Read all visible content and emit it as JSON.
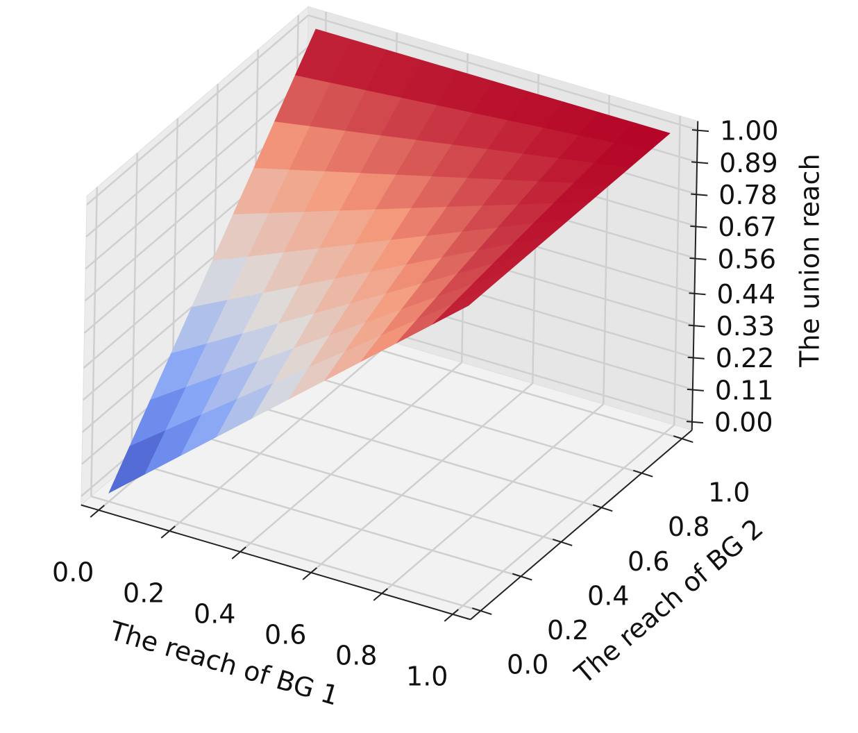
{
  "chart_data": {
    "type": "surface",
    "xlabel": "The reach of BG 1",
    "ylabel": "The reach of BG 2",
    "zlabel": "The union reach",
    "x": [
      0,
      0.1,
      0.2,
      0.3,
      0.4,
      0.5,
      0.6,
      0.7,
      0.8,
      0.9,
      1
    ],
    "y": [
      0,
      0.1,
      0.2,
      0.3,
      0.4,
      0.5,
      0.6,
      0.7,
      0.8,
      0.9,
      1
    ],
    "z": [
      [
        0,
        0.1,
        0.2,
        0.3,
        0.4,
        0.5,
        0.6,
        0.7,
        0.8,
        0.9,
        1
      ],
      [
        0.1,
        0.19,
        0.28,
        0.37,
        0.46,
        0.55,
        0.64,
        0.73,
        0.82,
        0.91,
        1
      ],
      [
        0.2,
        0.28,
        0.36,
        0.44,
        0.52,
        0.6,
        0.68,
        0.76,
        0.84,
        0.92,
        1
      ],
      [
        0.3,
        0.37,
        0.44,
        0.51,
        0.58,
        0.65,
        0.72,
        0.79,
        0.86,
        0.93,
        1
      ],
      [
        0.4,
        0.46,
        0.52,
        0.58,
        0.64,
        0.7,
        0.76,
        0.82,
        0.88,
        0.94,
        1
      ],
      [
        0.5,
        0.55,
        0.6,
        0.65,
        0.7,
        0.75,
        0.8,
        0.85,
        0.9,
        0.95,
        1
      ],
      [
        0.6,
        0.64,
        0.68,
        0.72,
        0.76,
        0.8,
        0.84,
        0.88,
        0.92,
        0.96,
        1
      ],
      [
        0.7,
        0.73,
        0.76,
        0.79,
        0.82,
        0.85,
        0.88,
        0.91,
        0.94,
        0.97,
        1
      ],
      [
        0.8,
        0.82,
        0.84,
        0.86,
        0.88,
        0.9,
        0.92,
        0.94,
        0.96,
        0.98,
        1
      ],
      [
        0.9,
        0.91,
        0.92,
        0.93,
        0.94,
        0.95,
        0.96,
        0.97,
        0.98,
        0.99,
        1
      ],
      [
        1,
        1,
        1,
        1,
        1,
        1,
        1,
        1,
        1,
        1,
        1
      ]
    ],
    "colormap": "coolwarm",
    "xlim": [
      -0.05,
      1.05
    ],
    "ylim": [
      -0.05,
      1.05
    ],
    "zlim": [
      -0.03,
      1.03
    ],
    "xticks": [
      {
        "value": 0,
        "label": "0.0"
      },
      0.2,
      0.4,
      0.6,
      0.8,
      {
        "value": 1,
        "label": "1.0"
      }
    ],
    "yticks": [
      {
        "value": 0,
        "label": "0.0"
      },
      0.2,
      0.4,
      0.6,
      0.8,
      {
        "value": 1,
        "label": "1.0"
      }
    ],
    "zticks": [
      {
        "value": 0,
        "label": "0.00"
      },
      0.11,
      0.22,
      0.33,
      0.44,
      0.56,
      0.67,
      0.78,
      0.89,
      {
        "value": 1,
        "label": "1.00"
      }
    ],
    "grid": true
  }
}
